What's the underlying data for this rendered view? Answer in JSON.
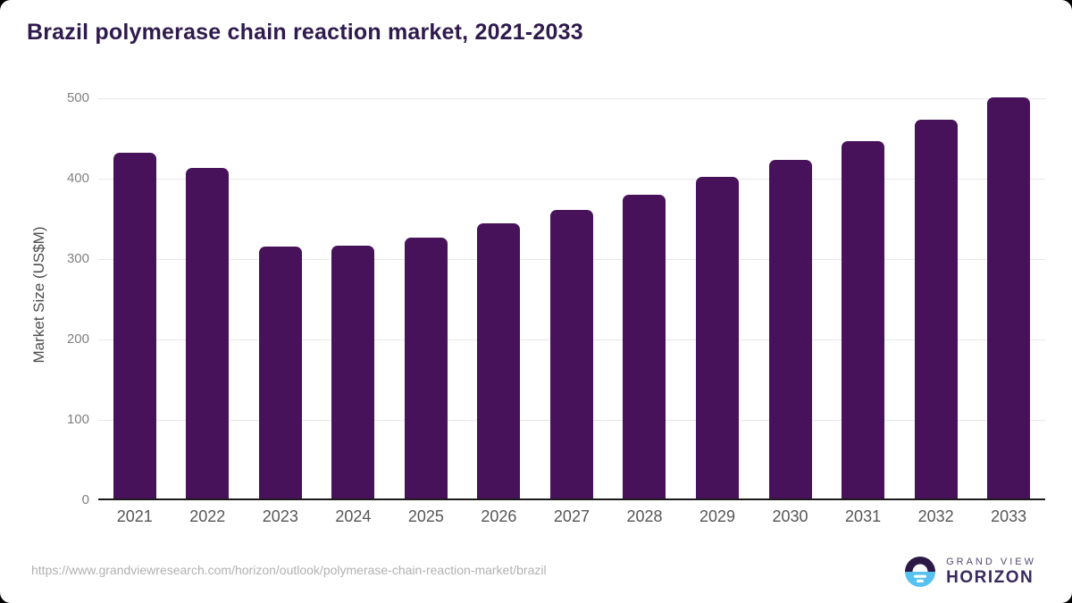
{
  "chart_data": {
    "type": "bar",
    "title": "Brazil polymerase chain reaction market, 2021-2033",
    "xlabel": "",
    "ylabel": "Market Size (US$M)",
    "categories": [
      "2021",
      "2022",
      "2023",
      "2024",
      "2025",
      "2026",
      "2027",
      "2028",
      "2029",
      "2030",
      "2031",
      "2032",
      "2033"
    ],
    "values": [
      430,
      411,
      313,
      315,
      325,
      342,
      359,
      378,
      400,
      421,
      445,
      471,
      499
    ],
    "ylim": [
      0,
      500
    ],
    "yticks": [
      0,
      100,
      200,
      300,
      400,
      500
    ],
    "grid": "horizontal",
    "legend": "none",
    "bar_color": "#471259"
  },
  "footer": {
    "source_url": "https://www.grandviewresearch.com/horizon/outlook/polymerase-chain-reaction-market/brazil",
    "logo": {
      "line1": "GRAND VIEW",
      "line2": "HORIZON"
    }
  },
  "colors": {
    "bar": "#471259",
    "title": "#2f1a4d",
    "axis_line": "#1b1b1b",
    "gridline": "#e7e7e7",
    "ytick_text": "#808080",
    "xtick_text": "#565656",
    "url_text": "#b1b1b1",
    "logo_dark": "#2c1a46",
    "logo_blue": "#57c1ef"
  }
}
